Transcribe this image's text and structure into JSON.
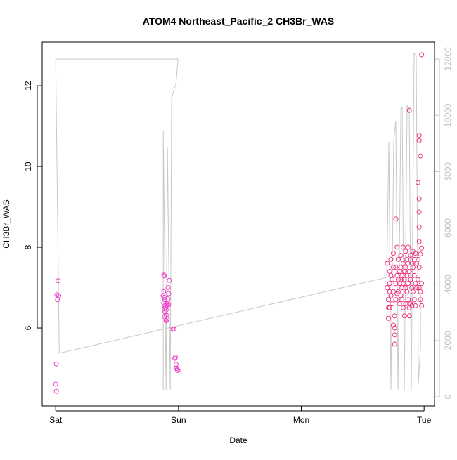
{
  "chart_data": {
    "type": "scatter",
    "title": "ATOM4 Northeast_Pacific_2 CH3Br_WAS",
    "xlabel": "Date",
    "ylabel": "CH3Br_WAS",
    "x_unit": "days after Saturday 00:00",
    "xlim": [
      -0.11,
      3.085
    ],
    "ylim": [
      4.07,
      13.08
    ],
    "y2lim": [
      -324,
      12600
    ],
    "x_ticks": [
      {
        "label": "Sat",
        "value": 0
      },
      {
        "label": "Sun",
        "value": 1
      },
      {
        "label": "Mon",
        "value": 2
      },
      {
        "label": "Tue",
        "value": 3
      }
    ],
    "y_ticks": [
      "6",
      "8",
      "10",
      "12"
    ],
    "y2_ticks": [
      "0",
      "2000",
      "4000",
      "6000",
      "8000",
      "10000",
      "12000"
    ],
    "grid": false,
    "colors": {
      "points_early": "#ee3ccc",
      "points_late": "#f0307a",
      "line": "#c8c8c8",
      "axis2": "#c0c0c0"
    },
    "series": [
      {
        "type": "scatter",
        "axis": "left",
        "points": [
          [
            0.02,
            7.17
          ],
          [
            0.01,
            6.82
          ],
          [
            0.025,
            6.8
          ],
          [
            0.015,
            6.7
          ],
          [
            0.005,
            5.11
          ],
          [
            0.0,
            4.61
          ],
          [
            0.005,
            4.43
          ],
          [
            0.88,
            7.31
          ],
          [
            0.885,
            7.29
          ],
          [
            0.88,
            6.9
          ],
          [
            0.875,
            6.8
          ],
          [
            0.885,
            6.76
          ],
          [
            0.89,
            6.7
          ],
          [
            0.88,
            6.62
          ],
          [
            0.89,
            6.55
          ],
          [
            0.895,
            6.5
          ],
          [
            0.885,
            6.48
          ],
          [
            0.9,
            6.45
          ],
          [
            0.89,
            6.4
          ],
          [
            0.9,
            6.32
          ],
          [
            0.885,
            6.28
          ],
          [
            0.905,
            6.22
          ],
          [
            0.9,
            6.18
          ],
          [
            0.91,
            6.6
          ],
          [
            0.915,
            6.72
          ],
          [
            0.92,
            6.85
          ],
          [
            0.915,
            7.0
          ],
          [
            0.925,
            7.18
          ],
          [
            0.91,
            6.55
          ],
          [
            0.905,
            6.62
          ],
          [
            0.92,
            6.58
          ],
          [
            0.955,
            5.97
          ],
          [
            0.965,
            5.97
          ],
          [
            0.975,
            5.28
          ],
          [
            0.97,
            5.25
          ],
          [
            0.98,
            5.1
          ],
          [
            0.985,
            5.0
          ],
          [
            0.99,
            4.97
          ],
          [
            0.995,
            4.95
          ]
        ]
      },
      {
        "type": "scatter",
        "axis": "left",
        "points": [
          [
            2.7,
            7.6
          ],
          [
            2.7,
            7.0
          ],
          [
            2.71,
            6.7
          ],
          [
            2.71,
            6.5
          ],
          [
            2.71,
            6.24
          ],
          [
            2.72,
            7.4
          ],
          [
            2.72,
            7.1
          ],
          [
            2.72,
            6.9
          ],
          [
            2.72,
            6.5
          ],
          [
            2.73,
            7.7
          ],
          [
            2.73,
            7.3
          ],
          [
            2.73,
            6.8
          ],
          [
            2.74,
            7.2
          ],
          [
            2.74,
            6.6
          ],
          [
            2.75,
            7.85
          ],
          [
            2.75,
            7.5
          ],
          [
            2.75,
            6.9
          ],
          [
            2.75,
            6.07
          ],
          [
            2.76,
            6.3
          ],
          [
            2.76,
            6.0
          ],
          [
            2.76,
            5.83
          ],
          [
            2.76,
            5.6
          ],
          [
            2.77,
            8.7
          ],
          [
            2.77,
            7.5
          ],
          [
            2.77,
            7.1
          ],
          [
            2.77,
            6.7
          ],
          [
            2.78,
            8.0
          ],
          [
            2.78,
            7.3
          ],
          [
            2.78,
            6.85
          ],
          [
            2.79,
            7.7
          ],
          [
            2.79,
            7.2
          ],
          [
            2.79,
            6.9
          ],
          [
            2.8,
            7.4
          ],
          [
            2.8,
            7.1
          ],
          [
            2.8,
            6.6
          ],
          [
            2.81,
            7.8
          ],
          [
            2.81,
            7.5
          ],
          [
            2.81,
            7.2
          ],
          [
            2.81,
            6.8
          ],
          [
            2.82,
            7.3
          ],
          [
            2.82,
            7.0
          ],
          [
            2.82,
            6.7
          ],
          [
            2.83,
            8.0
          ],
          [
            2.83,
            7.6
          ],
          [
            2.83,
            7.1
          ],
          [
            2.83,
            6.5
          ],
          [
            2.84,
            7.4
          ],
          [
            2.84,
            7.2
          ],
          [
            2.84,
            6.3
          ],
          [
            2.85,
            7.9
          ],
          [
            2.85,
            7.5
          ],
          [
            2.85,
            7.0
          ],
          [
            2.85,
            6.6
          ],
          [
            2.86,
            7.7
          ],
          [
            2.86,
            7.3
          ],
          [
            2.86,
            6.9
          ],
          [
            2.87,
            8.0
          ],
          [
            2.87,
            7.6
          ],
          [
            2.87,
            7.1
          ],
          [
            2.87,
            6.7
          ],
          [
            2.88,
            11.39
          ],
          [
            2.88,
            7.4
          ],
          [
            2.88,
            6.5
          ],
          [
            2.88,
            6.3
          ],
          [
            2.89,
            7.8
          ],
          [
            2.89,
            7.2
          ],
          [
            2.89,
            6.6
          ],
          [
            2.9,
            7.6
          ],
          [
            2.9,
            7.0
          ],
          [
            2.9,
            6.55
          ],
          [
            2.91,
            7.9
          ],
          [
            2.91,
            7.5
          ],
          [
            2.91,
            6.9
          ],
          [
            2.92,
            7.7
          ],
          [
            2.92,
            7.3
          ],
          [
            2.92,
            6.7
          ],
          [
            2.93,
            7.85
          ],
          [
            2.93,
            7.1
          ],
          [
            2.93,
            6.55
          ],
          [
            2.94,
            7.6
          ],
          [
            2.94,
            7.0
          ],
          [
            2.95,
            9.6
          ],
          [
            2.95,
            7.7
          ],
          [
            2.95,
            7.2
          ],
          [
            2.96,
            10.77
          ],
          [
            2.96,
            10.64
          ],
          [
            2.96,
            9.2
          ],
          [
            2.96,
            8.87
          ],
          [
            2.96,
            8.5
          ],
          [
            2.96,
            8.14
          ],
          [
            2.96,
            7.5
          ],
          [
            2.96,
            7.0
          ],
          [
            2.97,
            10.26
          ],
          [
            2.97,
            7.83
          ],
          [
            2.97,
            6.9
          ],
          [
            2.97,
            6.7
          ],
          [
            2.98,
            12.77
          ],
          [
            2.98,
            7.98
          ],
          [
            2.98,
            7.1
          ],
          [
            2.98,
            6.55
          ]
        ]
      },
      {
        "type": "line",
        "axis": "right",
        "points": [
          [
            0.876,
            250
          ],
          [
            0.876,
            9456
          ],
          [
            0.899,
            250
          ],
          [
            0.91,
            8857
          ],
          [
            0.933,
            250
          ],
          [
            0.944,
            10604
          ],
          [
            0.967,
            10978
          ],
          [
            0.979,
            11103
          ],
          [
            0.996,
            12000
          ],
          [
            0.0,
            12000
          ],
          [
            0.029,
            1547
          ],
          [
            2.696,
            4242
          ],
          [
            2.713,
            9057
          ],
          [
            2.73,
            250
          ],
          [
            2.753,
            9107
          ],
          [
            2.77,
            9805
          ],
          [
            2.788,
            250
          ],
          [
            2.811,
            10230
          ],
          [
            2.822,
            10279
          ],
          [
            2.839,
            250
          ],
          [
            2.862,
            10354
          ],
          [
            2.879,
            10230
          ],
          [
            2.896,
            250
          ],
          [
            2.919,
            12200
          ],
          [
            2.936,
            12100
          ],
          [
            2.954,
            500
          ],
          [
            2.971,
            1747
          ],
          [
            2.971,
            3618
          ]
        ]
      }
    ]
  }
}
